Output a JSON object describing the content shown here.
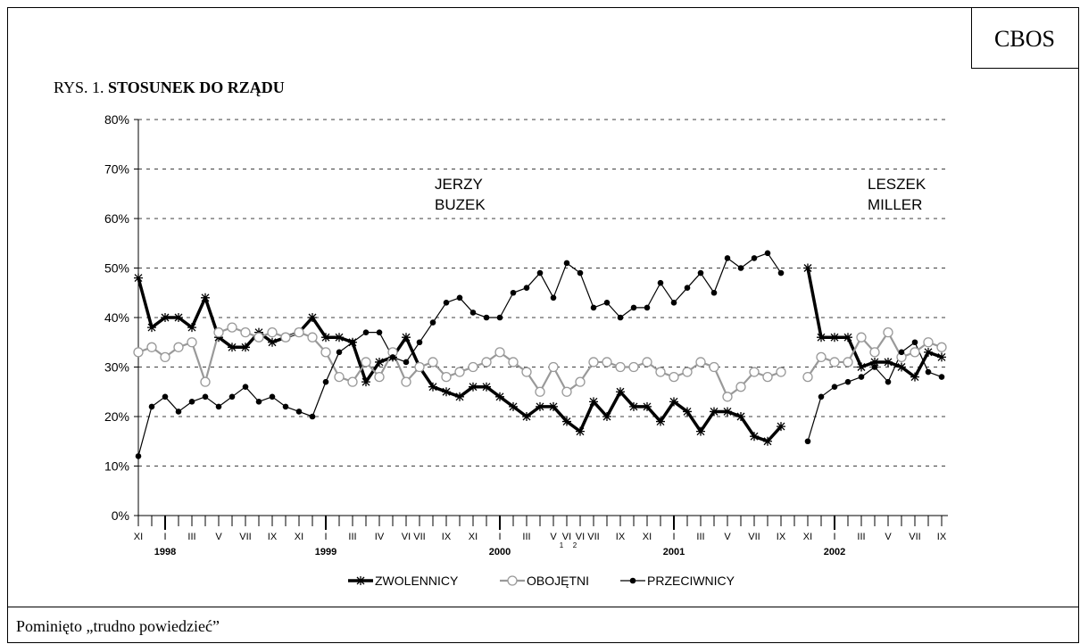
{
  "brand": "CBOS",
  "figure_label": "RYS. 1.",
  "footer_note": "Pominięto „trudno powiedzieć”",
  "chart_data": {
    "type": "line",
    "title": "STOSUNEK DO RZĄDU",
    "categories": [
      "XI",
      null,
      "I",
      null,
      "III",
      null,
      "V",
      null,
      "VII",
      null,
      "IX",
      null,
      "XI",
      null,
      "I",
      null,
      "III",
      null,
      "IV",
      null,
      "VI",
      "VII",
      null,
      "IX",
      null,
      "XI",
      null,
      "I",
      null,
      "III",
      null,
      "V",
      "VI",
      "VI",
      "VII",
      null,
      "IX",
      null,
      "XI",
      null,
      "I",
      null,
      "III",
      null,
      "V",
      null,
      "VII",
      null,
      "IX",
      null,
      "XI",
      null,
      "I",
      null,
      "III",
      null,
      "V",
      null,
      "VII",
      null,
      "IX"
    ],
    "category_subscripts": [
      null,
      null,
      null,
      null,
      null,
      null,
      null,
      null,
      null,
      null,
      null,
      null,
      null,
      null,
      null,
      null,
      null,
      null,
      null,
      null,
      null,
      null,
      null,
      null,
      null,
      null,
      null,
      null,
      null,
      null,
      null,
      null,
      "1",
      "2",
      null,
      null,
      null,
      null,
      null,
      null,
      null,
      null,
      null,
      null,
      null,
      null,
      null,
      null,
      null,
      null,
      null,
      null,
      null,
      null,
      null,
      null,
      null,
      null,
      null,
      null,
      null
    ],
    "years": [
      null,
      null,
      "1998",
      null,
      null,
      null,
      null,
      null,
      null,
      null,
      null,
      null,
      null,
      null,
      "1999",
      null,
      null,
      null,
      null,
      null,
      null,
      null,
      null,
      null,
      null,
      null,
      null,
      "2000",
      null,
      null,
      null,
      null,
      null,
      null,
      null,
      null,
      null,
      null,
      null,
      null,
      "2001",
      null,
      null,
      null,
      null,
      null,
      null,
      null,
      null,
      null,
      null,
      null,
      "2002",
      null,
      null,
      null,
      null,
      null,
      null,
      null,
      null
    ],
    "ylim": [
      0,
      80
    ],
    "yticks": [
      {
        "value": 0,
        "label": "0%"
      },
      {
        "value": 10,
        "label": "10%"
      },
      {
        "value": 20,
        "label": "20%"
      },
      {
        "value": 30,
        "label": "30%"
      },
      {
        "value": 40,
        "label": "40%"
      },
      {
        "value": 50,
        "label": "50%"
      },
      {
        "value": 60,
        "label": "60%"
      },
      {
        "value": 70,
        "label": "70%"
      },
      {
        "value": 80,
        "label": "80%"
      }
    ],
    "grid": true,
    "legend": "bottom",
    "annotations": [
      [
        "JERZY",
        "BUZEK"
      ],
      [
        "LESZEK",
        "MILLER"
      ]
    ],
    "series": [
      {
        "name": "ZWOLENNICY",
        "color": "#000000",
        "marker": "star",
        "line_style": "thick",
        "values": [
          48,
          38,
          40,
          40,
          38,
          44,
          36,
          34,
          34,
          37,
          35,
          36,
          37,
          40,
          36,
          36,
          35,
          27,
          31,
          32,
          36,
          30,
          26,
          25,
          24,
          26,
          26,
          24,
          22,
          20,
          22,
          22,
          19,
          17,
          23,
          20,
          25,
          22,
          22,
          19,
          23,
          21,
          17,
          21,
          21,
          20,
          16,
          15,
          18,
          null,
          50,
          36,
          36,
          36,
          30,
          31,
          31,
          30,
          28,
          33,
          32
        ]
      },
      {
        "name": "OBOJĘTNI",
        "color": "#999999",
        "marker": "circle-open",
        "line_style": "medium",
        "values": [
          33,
          34,
          32,
          34,
          35,
          27,
          37,
          38,
          37,
          36,
          37,
          36,
          37,
          36,
          33,
          28,
          27,
          31,
          28,
          33,
          27,
          30,
          31,
          28,
          29,
          30,
          31,
          33,
          31,
          29,
          25,
          30,
          25,
          27,
          31,
          31,
          30,
          30,
          31,
          29,
          28,
          29,
          31,
          30,
          24,
          26,
          29,
          28,
          29,
          null,
          28,
          32,
          31,
          31,
          36,
          33,
          37,
          32,
          33,
          35,
          34
        ]
      },
      {
        "name": "PRZECIWNICY",
        "color": "#000000",
        "marker": "circle",
        "line_style": "thin",
        "values": [
          12,
          22,
          24,
          21,
          23,
          24,
          22,
          24,
          26,
          23,
          24,
          22,
          21,
          20,
          27,
          33,
          35,
          37,
          37,
          32,
          31,
          35,
          39,
          43,
          44,
          41,
          40,
          40,
          45,
          46,
          49,
          44,
          51,
          49,
          42,
          43,
          40,
          42,
          42,
          47,
          43,
          46,
          49,
          45,
          52,
          50,
          52,
          53,
          49,
          null,
          15,
          24,
          26,
          27,
          28,
          30,
          27,
          33,
          35,
          29,
          28
        ]
      }
    ]
  }
}
